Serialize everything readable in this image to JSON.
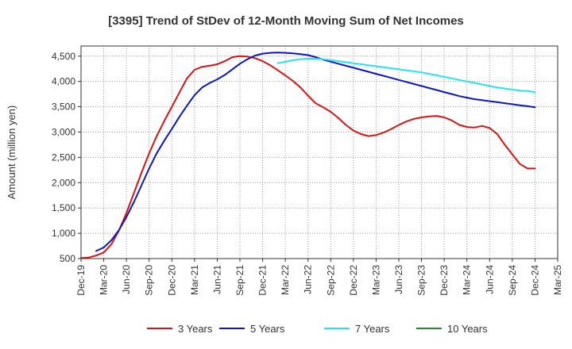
{
  "chart_data": {
    "type": "line",
    "title": "[3395]  Trend of StDev of 12-Month Moving Sum of Net Incomes",
    "xlabel": "",
    "ylabel": "Amount (million yen)",
    "ylim": [
      500,
      4700
    ],
    "yticks": [
      500,
      1000,
      1500,
      2000,
      2500,
      3000,
      3500,
      4000,
      4500
    ],
    "ytick_labels": [
      "500",
      "1,000",
      "1,500",
      "2,000",
      "2,500",
      "3,000",
      "3,500",
      "4,000",
      "4,500"
    ],
    "xlim": [
      "2019-12",
      "2025-03"
    ],
    "xticks": [
      "2019-12",
      "2020-03",
      "2020-06",
      "2020-09",
      "2020-12",
      "2021-03",
      "2021-06",
      "2021-09",
      "2021-12",
      "2022-03",
      "2022-06",
      "2022-09",
      "2022-12",
      "2023-03",
      "2023-06",
      "2023-09",
      "2023-12",
      "2024-03",
      "2024-06",
      "2024-09",
      "2024-12",
      "2025-03"
    ],
    "xtick_labels": [
      "Dec-19",
      "Mar-20",
      "Jun-20",
      "Sep-20",
      "Dec-20",
      "Mar-21",
      "Jun-21",
      "Sep-21",
      "Dec-21",
      "Mar-22",
      "Jun-22",
      "Sep-22",
      "Dec-22",
      "Mar-23",
      "Jun-23",
      "Sep-23",
      "Dec-23",
      "Mar-24",
      "Jun-24",
      "Sep-24",
      "Dec-24",
      "Mar-25"
    ],
    "grid": true,
    "legend_position": "bottom",
    "series": [
      {
        "name": "3 Years",
        "color": "#dd1111",
        "x": [
          "2019-12",
          "2020-01",
          "2020-02",
          "2020-03",
          "2020-04",
          "2020-05",
          "2020-06",
          "2020-07",
          "2020-08",
          "2020-09",
          "2020-10",
          "2020-11",
          "2020-12",
          "2021-01",
          "2021-02",
          "2021-03",
          "2021-04",
          "2021-05",
          "2021-06",
          "2021-07",
          "2021-08",
          "2021-09",
          "2021-10",
          "2021-11",
          "2021-12",
          "2022-01",
          "2022-02",
          "2022-03",
          "2022-04",
          "2022-05",
          "2022-06",
          "2022-07",
          "2022-08",
          "2022-09",
          "2022-10",
          "2022-11",
          "2022-12",
          "2023-01",
          "2023-02",
          "2023-03",
          "2023-04",
          "2023-05",
          "2023-06",
          "2023-07",
          "2023-08",
          "2023-09",
          "2023-10",
          "2023-11",
          "2023-12",
          "2024-01",
          "2024-02",
          "2024-03",
          "2024-04",
          "2024-05",
          "2024-06",
          "2024-07",
          "2024-08",
          "2024-09",
          "2024-10",
          "2024-11",
          "2024-12"
        ],
        "values": [
          510,
          520,
          560,
          620,
          780,
          1050,
          1400,
          1800,
          2200,
          2580,
          2920,
          3220,
          3500,
          3780,
          4060,
          4230,
          4290,
          4310,
          4340,
          4400,
          4480,
          4500,
          4490,
          4460,
          4400,
          4320,
          4220,
          4120,
          4010,
          3880,
          3720,
          3570,
          3490,
          3400,
          3280,
          3140,
          3030,
          2960,
          2920,
          2940,
          2990,
          3060,
          3140,
          3210,
          3260,
          3290,
          3310,
          3320,
          3290,
          3230,
          3140,
          3100,
          3090,
          3120,
          3080,
          2960,
          2750,
          2560,
          2370,
          2280,
          2280
        ]
      },
      {
        "name": "5 Years",
        "color": "#0a16c8",
        "x": [
          "2020-02",
          "2020-03",
          "2020-04",
          "2020-05",
          "2020-06",
          "2020-07",
          "2020-08",
          "2020-09",
          "2020-10",
          "2020-11",
          "2020-12",
          "2021-01",
          "2021-02",
          "2021-03",
          "2021-04",
          "2021-05",
          "2021-06",
          "2021-07",
          "2021-08",
          "2021-09",
          "2021-10",
          "2021-11",
          "2021-12",
          "2022-01",
          "2022-02",
          "2022-03",
          "2022-04",
          "2022-05",
          "2022-06",
          "2022-07",
          "2022-08",
          "2022-09",
          "2022-10",
          "2022-11",
          "2022-12",
          "2023-01",
          "2023-02",
          "2023-03",
          "2023-04",
          "2023-05",
          "2023-06",
          "2023-07",
          "2023-08",
          "2023-09",
          "2023-10",
          "2023-11",
          "2023-12",
          "2024-01",
          "2024-02",
          "2024-03",
          "2024-04",
          "2024-05",
          "2024-06",
          "2024-07",
          "2024-08",
          "2024-09",
          "2024-10",
          "2024-11",
          "2024-12"
        ],
        "values": [
          650,
          720,
          860,
          1060,
          1320,
          1620,
          1950,
          2280,
          2580,
          2830,
          3060,
          3300,
          3520,
          3730,
          3880,
          3970,
          4040,
          4130,
          4240,
          4350,
          4440,
          4510,
          4550,
          4565,
          4570,
          4565,
          4555,
          4540,
          4520,
          4480,
          4430,
          4390,
          4350,
          4310,
          4270,
          4230,
          4190,
          4150,
          4110,
          4070,
          4030,
          3990,
          3950,
          3910,
          3870,
          3830,
          3790,
          3750,
          3710,
          3680,
          3650,
          3630,
          3610,
          3590,
          3570,
          3550,
          3530,
          3510,
          3490
        ]
      },
      {
        "name": "7 Years",
        "color": "#22e6ef",
        "x": [
          "2022-02",
          "2022-03",
          "2022-04",
          "2022-05",
          "2022-06",
          "2022-07",
          "2022-08",
          "2022-09",
          "2022-10",
          "2022-11",
          "2022-12",
          "2023-01",
          "2023-02",
          "2023-03",
          "2023-04",
          "2023-05",
          "2023-06",
          "2023-07",
          "2023-08",
          "2023-09",
          "2023-10",
          "2023-11",
          "2023-12",
          "2024-01",
          "2024-02",
          "2024-03",
          "2024-04",
          "2024-05",
          "2024-06",
          "2024-07",
          "2024-08",
          "2024-09",
          "2024-10",
          "2024-11",
          "2024-12"
        ],
        "values": [
          4360,
          4390,
          4420,
          4440,
          4450,
          4450,
          4440,
          4420,
          4400,
          4380,
          4360,
          4340,
          4320,
          4300,
          4280,
          4260,
          4240,
          4220,
          4200,
          4180,
          4150,
          4120,
          4090,
          4060,
          4030,
          4000,
          3970,
          3940,
          3910,
          3880,
          3860,
          3840,
          3820,
          3810,
          3790
        ]
      },
      {
        "name": "10 Years",
        "color": "#228b22",
        "x": [],
        "values": []
      }
    ]
  }
}
